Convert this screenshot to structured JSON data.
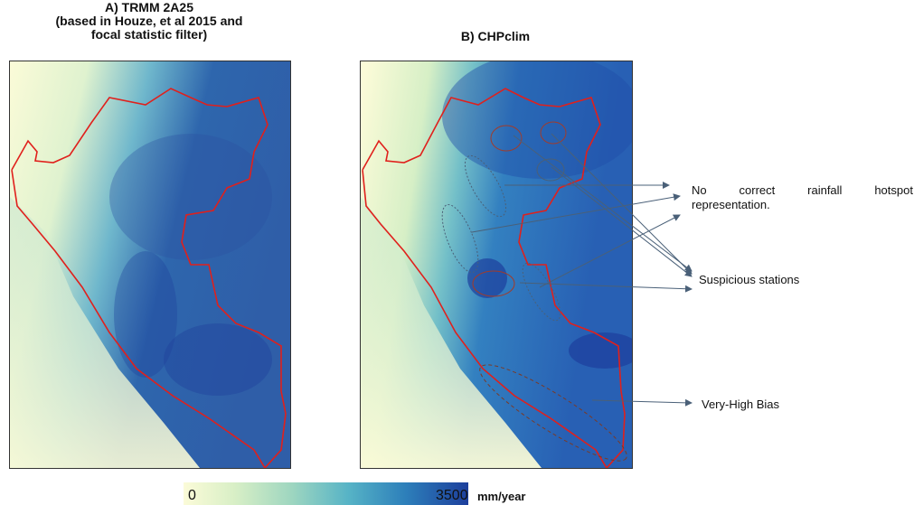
{
  "panel_a": {
    "title_line1": "A) TRMM 2A25",
    "title_line2": "(based in Houze, et al 2015 and",
    "title_line3": "focal statistic filter)"
  },
  "panel_b": {
    "title": "B) CHPclim"
  },
  "annotations": {
    "hotspot_word1": "No",
    "hotspot_word2": "correct",
    "hotspot_word3": "rainfall",
    "hotspot_word4": "hotspot",
    "hotspot_line2": "representation.",
    "suspicious": "Suspicious stations",
    "bias": "Very-High Bias"
  },
  "colorbar": {
    "min_label": "0",
    "max_label": "3500",
    "unit": "mm/year",
    "colors": [
      "#fbfbd8",
      "#9ed6c0",
      "#2d7fba",
      "#1d3f9c"
    ]
  },
  "colors": {
    "border": "#e0201c",
    "annotation_line": "#4a6078",
    "circle_red": "#a03c2c"
  },
  "icons": {
    "arrow": "arrow-right-icon"
  }
}
